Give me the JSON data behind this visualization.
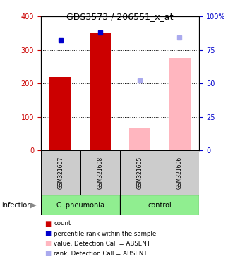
{
  "title": "GDS3573 / 206551_x_at",
  "samples": [
    "GSM321607",
    "GSM321608",
    "GSM321605",
    "GSM321606"
  ],
  "count_values": [
    220,
    350,
    null,
    null
  ],
  "absent_values": [
    null,
    null,
    65,
    275
  ],
  "percentile_present": [
    82,
    88,
    null,
    null
  ],
  "percentile_absent": [
    null,
    null,
    52,
    84
  ],
  "bar_color_present": "#cc0000",
  "bar_color_absent": "#ffb6bf",
  "dot_color_present": "#0000cc",
  "dot_color_absent": "#aaaaee",
  "ylim_left": [
    0,
    400
  ],
  "ylim_right": [
    0,
    100
  ],
  "yticks_left": [
    0,
    100,
    200,
    300,
    400
  ],
  "yticks_right": [
    0,
    25,
    50,
    75,
    100
  ],
  "ytick_labels_right": [
    "0",
    "25",
    "50",
    "75",
    "100%"
  ],
  "left_axis_color": "#cc0000",
  "right_axis_color": "#0000cc",
  "bar_width": 0.55,
  "sample_bg_color": "#cccccc",
  "group_bg_color": "#90ee90",
  "infection_label": "infection",
  "legend_items": [
    {
      "color": "#cc0000",
      "label": "count"
    },
    {
      "color": "#0000cc",
      "label": "percentile rank within the sample"
    },
    {
      "color": "#ffb6bf",
      "label": "value, Detection Call = ABSENT"
    },
    {
      "color": "#aaaaee",
      "label": "rank, Detection Call = ABSENT"
    }
  ]
}
